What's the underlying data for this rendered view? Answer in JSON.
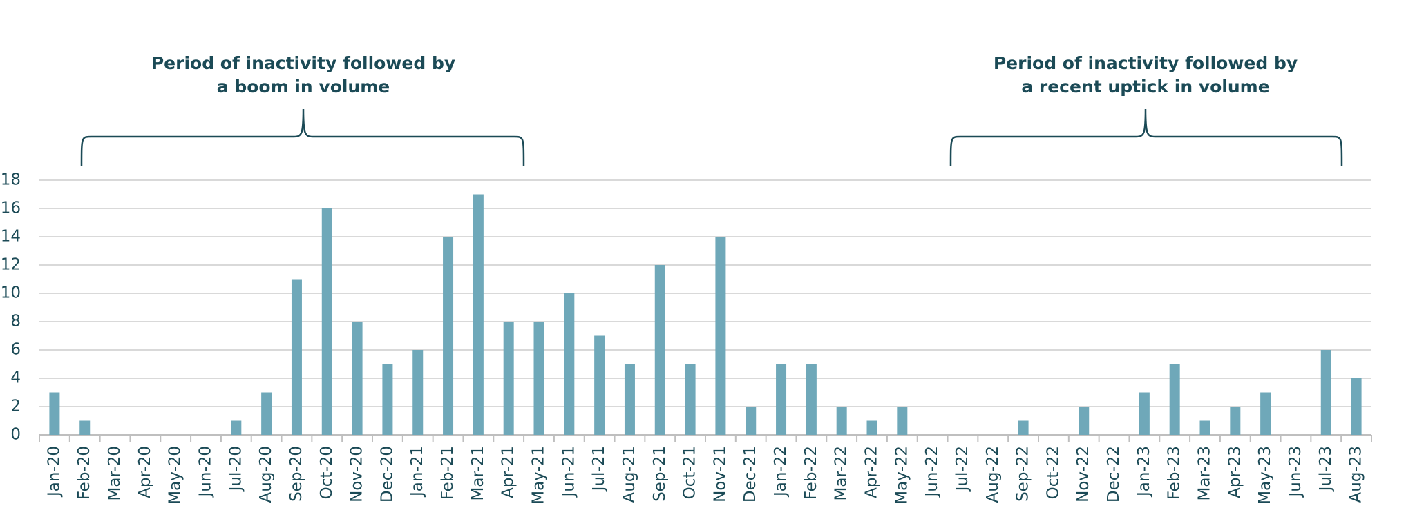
{
  "chart_data": {
    "type": "bar",
    "categories": [
      "Jan-20",
      "Feb-20",
      "Mar-20",
      "Apr-20",
      "May-20",
      "Jun-20",
      "Jul-20",
      "Aug-20",
      "Sep-20",
      "Oct-20",
      "Nov-20",
      "Dec-20",
      "Jan-21",
      "Feb-21",
      "Mar-21",
      "Apr-21",
      "May-21",
      "Jun-21",
      "Jul-21",
      "Aug-21",
      "Sep-21",
      "Oct-21",
      "Nov-21",
      "Dec-21",
      "Jan-22",
      "Feb-22",
      "Mar-22",
      "Apr-22",
      "May-22",
      "Jun-22",
      "Jul-22",
      "Aug-22",
      "Sep-22",
      "Oct-22",
      "Nov-22",
      "Dec-22",
      "Jan-23",
      "Feb-23",
      "Mar-23",
      "Apr-23",
      "May-23",
      "Jun-23",
      "Jul-23",
      "Aug-23"
    ],
    "values": [
      3,
      1,
      0,
      0,
      0,
      0,
      1,
      3,
      11,
      16,
      8,
      5,
      6,
      14,
      17,
      8,
      8,
      10,
      7,
      5,
      12,
      5,
      14,
      2,
      5,
      5,
      2,
      1,
      2,
      0,
      0,
      0,
      1,
      0,
      2,
      0,
      3,
      5,
      1,
      2,
      3,
      0,
      6,
      4
    ],
    "color": "#6fa8b9",
    "ylim": [
      0,
      18
    ],
    "yticks": [
      0,
      2,
      4,
      6,
      8,
      10,
      12,
      14,
      16,
      18
    ],
    "grid": true,
    "annotations": [
      {
        "text": [
          "Period of inactivity followed by",
          "a boom in volume"
        ]
      },
      {
        "text": [
          "Period of inactivity followed by",
          "a recent uptick in volume"
        ]
      }
    ]
  }
}
